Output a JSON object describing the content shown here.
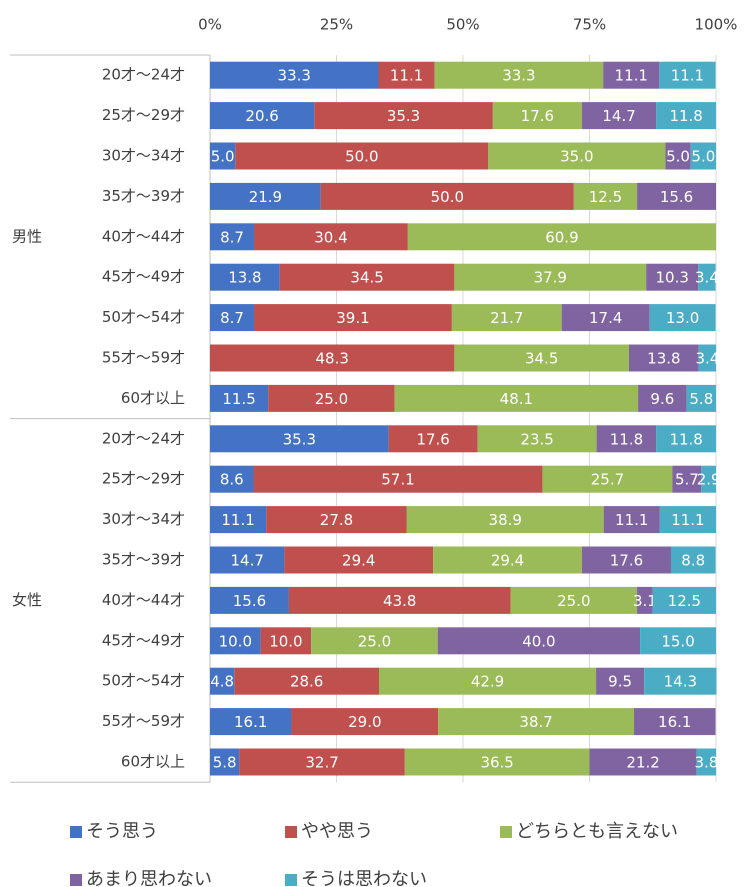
{
  "chart_data": {
    "type": "stacked-bar-100",
    "groups": [
      {
        "label": "男性",
        "categories": [
          "20才～24才",
          "25才～29才",
          "30才～34才",
          "35才～39才",
          "40才～44才",
          "45才～49才",
          "50才～54才",
          "55才～59才",
          "60才以上"
        ]
      },
      {
        "label": "女性",
        "categories": [
          "20才～24才",
          "25才～29才",
          "30才～34才",
          "35才～39才",
          "40才～44才",
          "45才～49才",
          "50才～54才",
          "55才～59才",
          "60才以上"
        ]
      }
    ],
    "series": [
      {
        "name": "そう思う",
        "color": "#4472c4",
        "values": [
          33.3,
          20.6,
          5.0,
          21.9,
          8.7,
          13.8,
          8.7,
          0,
          11.5,
          35.3,
          8.6,
          11.1,
          14.7,
          15.6,
          10.0,
          4.8,
          16.1,
          5.8
        ],
        "value_labels": [
          "33.3",
          "20.6",
          "5.0",
          "21.9",
          "8.7",
          "13.8",
          "8.7",
          null,
          "11.5",
          "35.3",
          "8.6",
          "11.1",
          "14.7",
          "15.6",
          "10.0",
          "4.8",
          "16.1",
          "5.8"
        ]
      },
      {
        "name": "やや思う",
        "color": "#c0504d",
        "values": [
          11.1,
          35.3,
          50.0,
          50.0,
          30.4,
          34.5,
          39.1,
          48.3,
          25.0,
          17.6,
          57.1,
          27.8,
          29.4,
          43.8,
          10.0,
          28.6,
          29.0,
          32.7
        ],
        "value_labels": [
          "11.1",
          "35.3",
          "50.0",
          "50.0",
          "30.4",
          "34.5",
          "39.1",
          "48.3",
          "25.0",
          "17.6",
          "57.1",
          "27.8",
          "29.4",
          "43.8",
          "10.0",
          "28.6",
          "29.0",
          "32.7"
        ]
      },
      {
        "name": "どちらとも言えない",
        "color": "#9bbb59",
        "values": [
          33.3,
          17.6,
          35.0,
          12.5,
          60.9,
          37.9,
          21.7,
          34.5,
          48.1,
          23.5,
          25.7,
          38.9,
          29.4,
          25.0,
          25.0,
          42.9,
          38.7,
          36.5
        ],
        "value_labels": [
          "33.3",
          "17.6",
          "35.0",
          "12.5",
          "60.9",
          "37.9",
          "21.7",
          "34.5",
          "48.1",
          "23.5",
          "25.7",
          "38.9",
          "29.4",
          "25.0",
          "25.0",
          "42.9",
          "38.7",
          "36.5"
        ]
      },
      {
        "name": "あまり思わない",
        "color": "#8064a2",
        "values": [
          11.1,
          14.7,
          5.0,
          15.6,
          0,
          10.3,
          17.4,
          13.8,
          9.6,
          11.8,
          5.7,
          11.1,
          17.6,
          3.1,
          40.0,
          9.5,
          16.1,
          21.2
        ],
        "value_labels": [
          "11.1",
          "14.7",
          "5.0",
          "15.6",
          null,
          "10.3",
          "17.4",
          "13.8",
          "9.6",
          "11.8",
          "5.7",
          "11.1",
          "17.6",
          "3.1",
          "40.0",
          "9.5",
          "16.1",
          "21.2"
        ]
      },
      {
        "name": "そうは思わない",
        "color": "#4bacc6",
        "values": [
          11.1,
          11.8,
          5.0,
          0,
          0,
          3.4,
          13.0,
          3.4,
          5.8,
          11.8,
          2.9,
          11.1,
          8.8,
          12.5,
          15.0,
          14.3,
          0,
          3.8
        ],
        "value_labels": [
          "11.1",
          "11.8",
          "5.0",
          null,
          null,
          "3.4",
          "13.0",
          "3.4",
          "5.8",
          "11.8",
          "2.9",
          "11.1",
          "8.8",
          "12.5",
          "15.0",
          "14.3",
          null,
          "3.8"
        ]
      }
    ],
    "xlim": [
      0,
      100
    ],
    "xticks": [
      {
        "value": 0,
        "label": "0%"
      },
      {
        "value": 25,
        "label": "25%"
      },
      {
        "value": 50,
        "label": "50%"
      },
      {
        "value": 75,
        "label": "75%"
      },
      {
        "value": 100,
        "label": "100%"
      }
    ],
    "grid": true,
    "legend": "bottom"
  }
}
